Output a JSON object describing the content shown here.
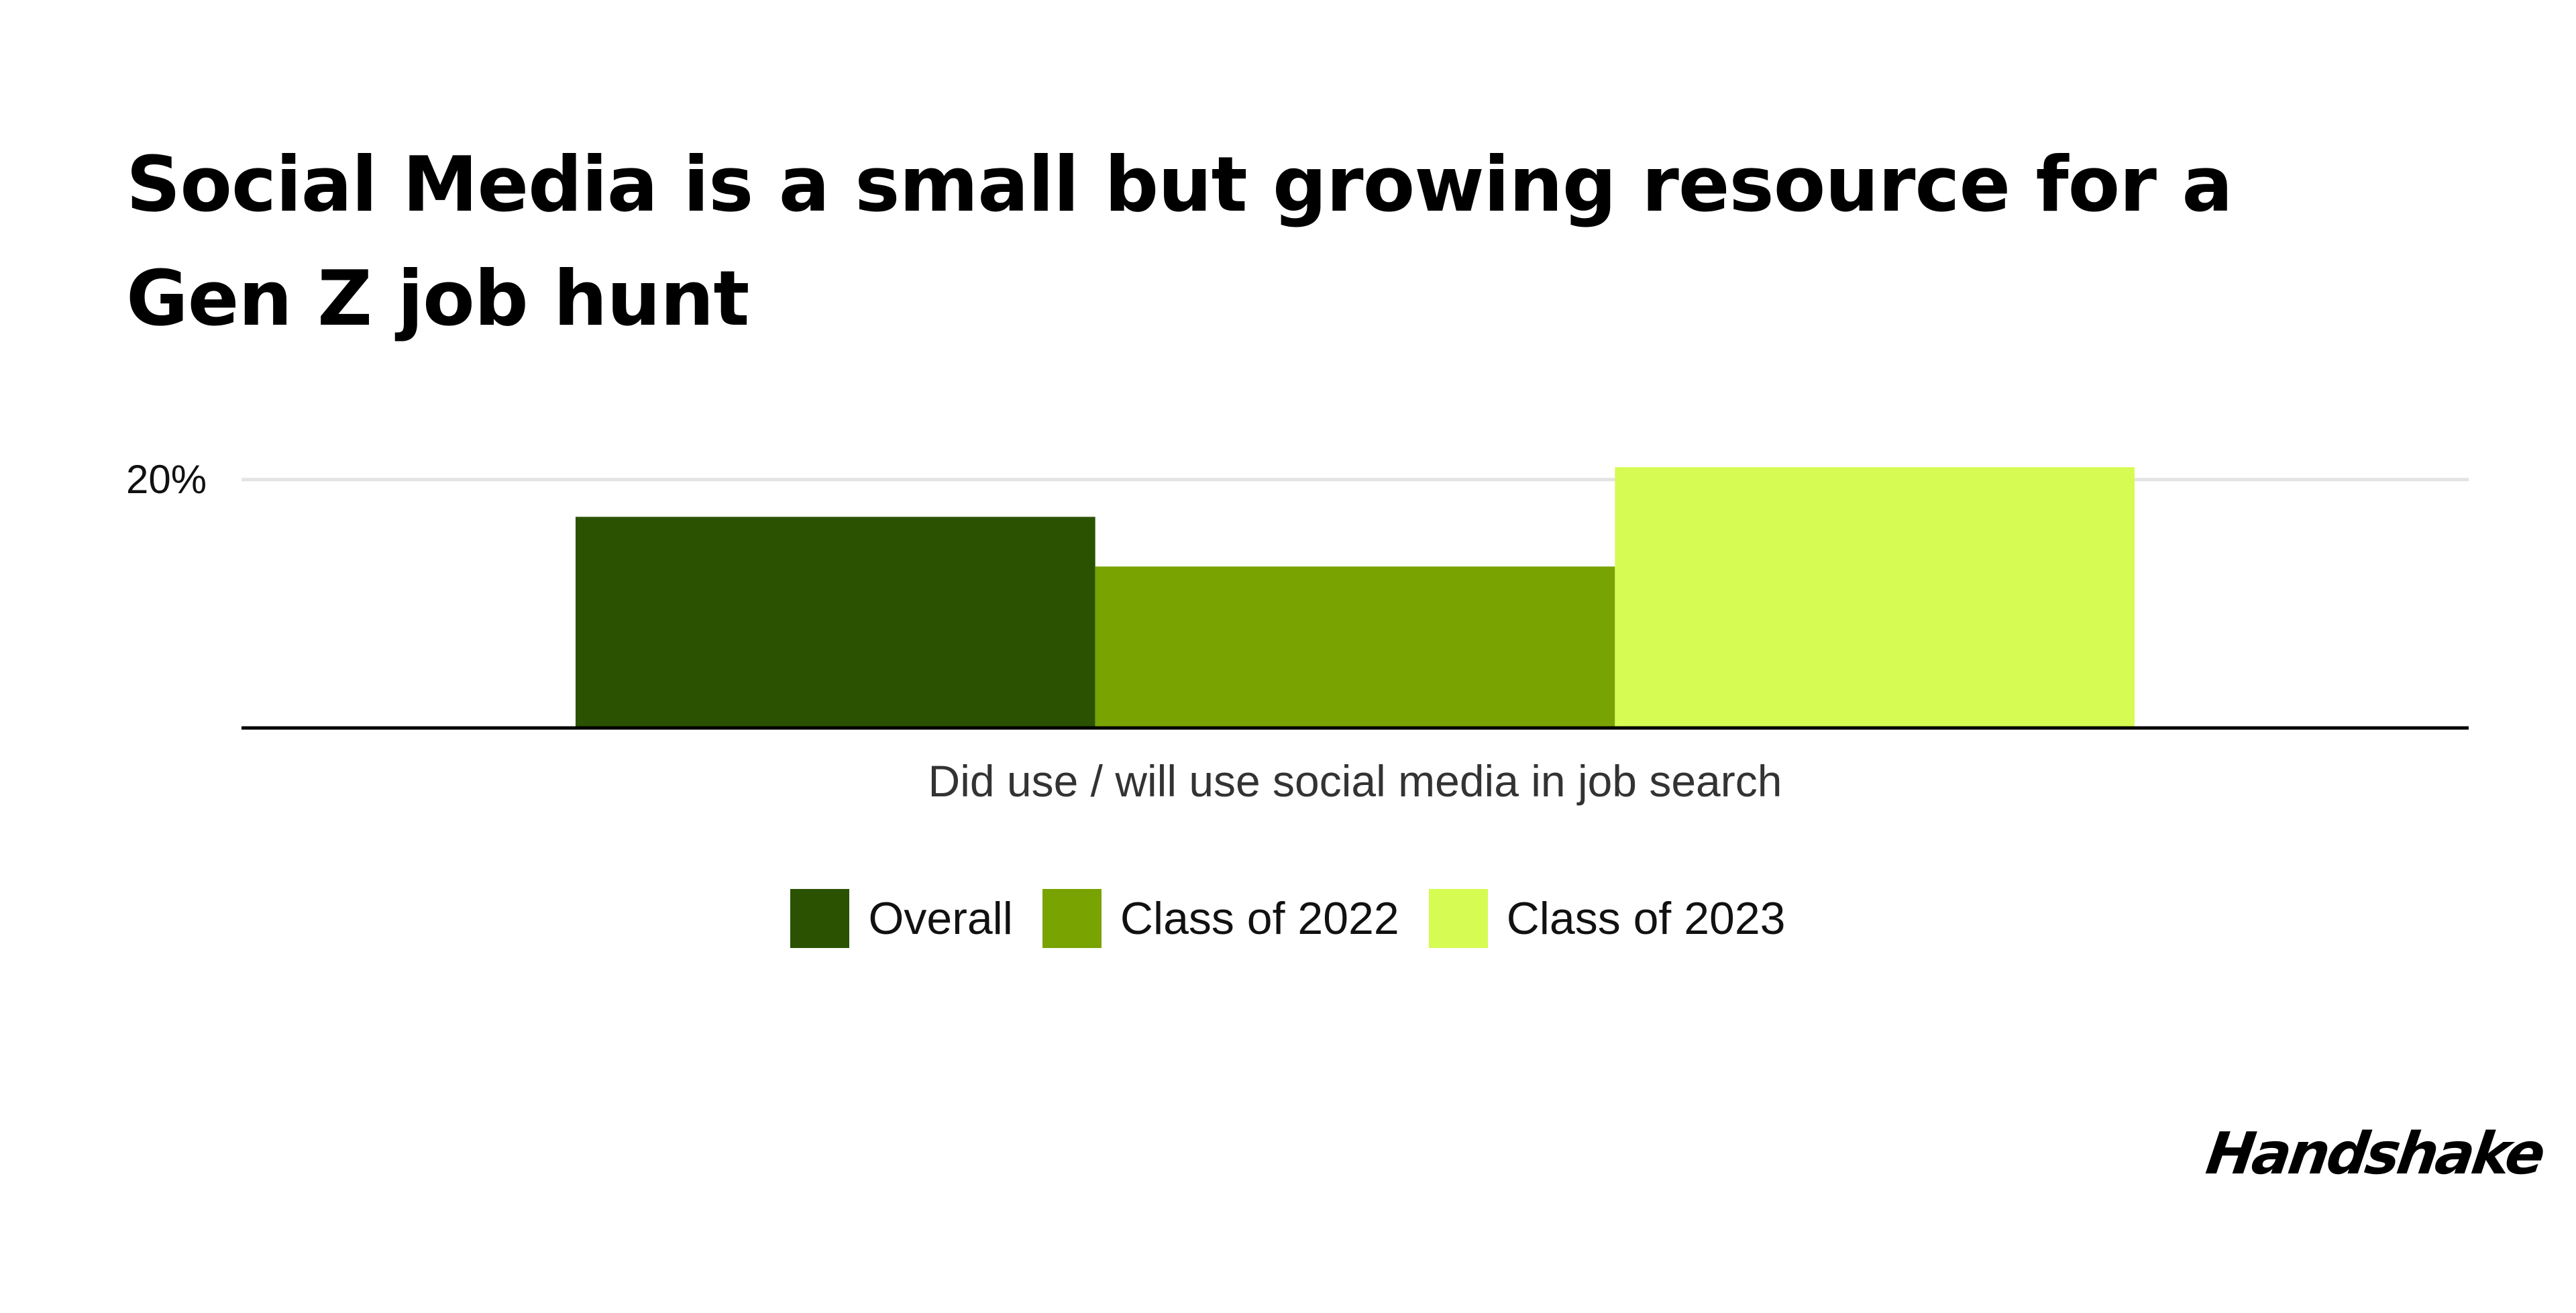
{
  "chart_data": {
    "type": "bar",
    "title": "Social Media is a small but growing resource for a Gen Z job hunt",
    "categories": [
      "Did use / will use social media in job search"
    ],
    "series": [
      {
        "name": "Overall",
        "values": [
          17
        ],
        "color": "#2a5200"
      },
      {
        "name": "Class of 2022",
        "values": [
          13
        ],
        "color": "#79a300"
      },
      {
        "name": "Class of 2023",
        "values": [
          21
        ],
        "color": "#d6fb52"
      }
    ],
    "ylim": [
      0,
      20.8
    ],
    "yticks": [
      {
        "value": 20,
        "label": "20%"
      }
    ],
    "grid": true,
    "legend_position": "bottom-center",
    "xlabel": "",
    "ylabel": ""
  },
  "brand": {
    "logo_text": "Handshake"
  },
  "colors": {
    "gridline": "#e3e3e3",
    "baseline": "#000000",
    "background": "#ffffff"
  }
}
